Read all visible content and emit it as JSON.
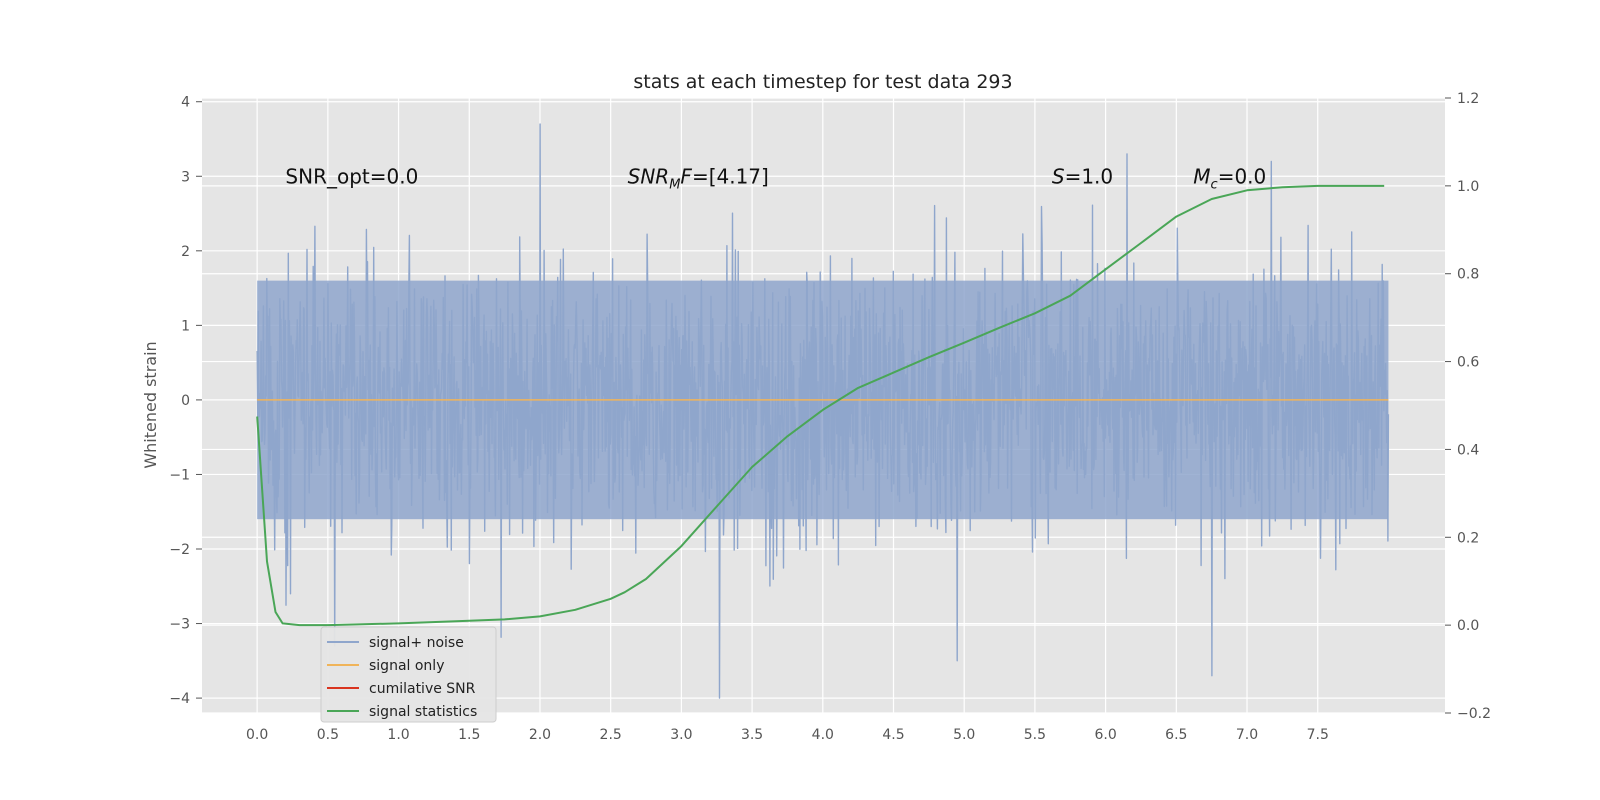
{
  "chart_data": {
    "type": "line",
    "title": "stats at each timestep for test data 293",
    "ylabel": "Whitened strain",
    "xlabel": "",
    "xlim": [
      -0.39,
      8.4
    ],
    "ylim": [
      -4.2,
      4.05
    ],
    "y2lim": [
      -0.2,
      1.2
    ],
    "grid": true,
    "x_ticks": [
      "0.0",
      "0.5",
      "1.0",
      "1.5",
      "2.0",
      "2.5",
      "3.0",
      "3.5",
      "4.0",
      "4.5",
      "5.0",
      "5.5",
      "6.0",
      "6.5",
      "7.0",
      "7.5"
    ],
    "y_ticks": [
      "4",
      "3",
      "2",
      "1",
      "0",
      "−1",
      "−2",
      "−3",
      "−4"
    ],
    "y2_ticks": [
      "1.2",
      "1.0",
      "0.8",
      "0.6",
      "0.4",
      "0.2",
      "0.0",
      "−0.2"
    ],
    "annotations": [
      {
        "text": "SNR_opt=0.0",
        "x": 0.2,
        "y": 2.9
      },
      {
        "text_italic": "SNR",
        "sub": "M",
        "text_italic2": "F",
        "text": "=[4.17]",
        "x": 2.62,
        "y": 2.9
      },
      {
        "text_italic": "S",
        "text": "=1.0",
        "x": 5.62,
        "y": 2.9
      },
      {
        "text_italic": "M",
        "sub": "c",
        "text": "=0.0",
        "x": 6.62,
        "y": 2.9
      }
    ],
    "legend": {
      "position": "lower-left",
      "entries": [
        {
          "label": "signal+ noise",
          "color": "#8fa6cc"
        },
        {
          "label": "signal only",
          "color": "#f0b45a"
        },
        {
          "label": "cumilative SNR",
          "color": "#d9341f"
        },
        {
          "label": "signal statistics",
          "color": "#4aa657"
        }
      ]
    },
    "series": [
      {
        "name": "signal+ noise",
        "axis": "left",
        "color": "#8fa6cc",
        "x_range": [
          0.0,
          8.0
        ],
        "samples": 2000,
        "amplitude_sigma": 0.9,
        "band": [
          -1.6,
          1.6
        ],
        "notable_peaks": [
          {
            "x": 2.0,
            "y": 3.7
          },
          {
            "x": 3.27,
            "y": -4.0
          },
          {
            "x": 4.95,
            "y": -3.5
          },
          {
            "x": 6.75,
            "y": -3.7
          },
          {
            "x": 0.55,
            "y": -3.3
          },
          {
            "x": 6.15,
            "y": 3.3
          },
          {
            "x": 7.17,
            "y": 3.2
          }
        ]
      },
      {
        "name": "signal only",
        "axis": "left",
        "color": "#f0b45a",
        "x": [
          0.0,
          8.0
        ],
        "y": [
          0.0,
          0.0
        ]
      },
      {
        "name": "signal statistics",
        "axis": "right",
        "color": "#4aa657",
        "x": [
          0.0,
          0.07,
          0.13,
          0.18,
          0.3,
          0.5,
          1.0,
          1.5,
          1.75,
          2.0,
          2.25,
          2.5,
          2.6,
          2.75,
          3.0,
          3.25,
          3.5,
          3.75,
          4.0,
          4.25,
          4.5,
          4.75,
          5.0,
          5.25,
          5.5,
          5.75,
          6.0,
          6.25,
          6.5,
          6.75,
          7.0,
          7.25,
          7.5,
          7.75,
          7.97
        ],
        "y": [
          0.475,
          0.145,
          0.03,
          0.004,
          0.0,
          0.0,
          0.004,
          0.01,
          0.013,
          0.02,
          0.035,
          0.06,
          0.075,
          0.105,
          0.18,
          0.27,
          0.36,
          0.43,
          0.49,
          0.54,
          0.575,
          0.61,
          0.643,
          0.677,
          0.71,
          0.75,
          0.81,
          0.87,
          0.93,
          0.97,
          0.99,
          0.997,
          1.0,
          1.0,
          1.0
        ]
      }
    ]
  }
}
